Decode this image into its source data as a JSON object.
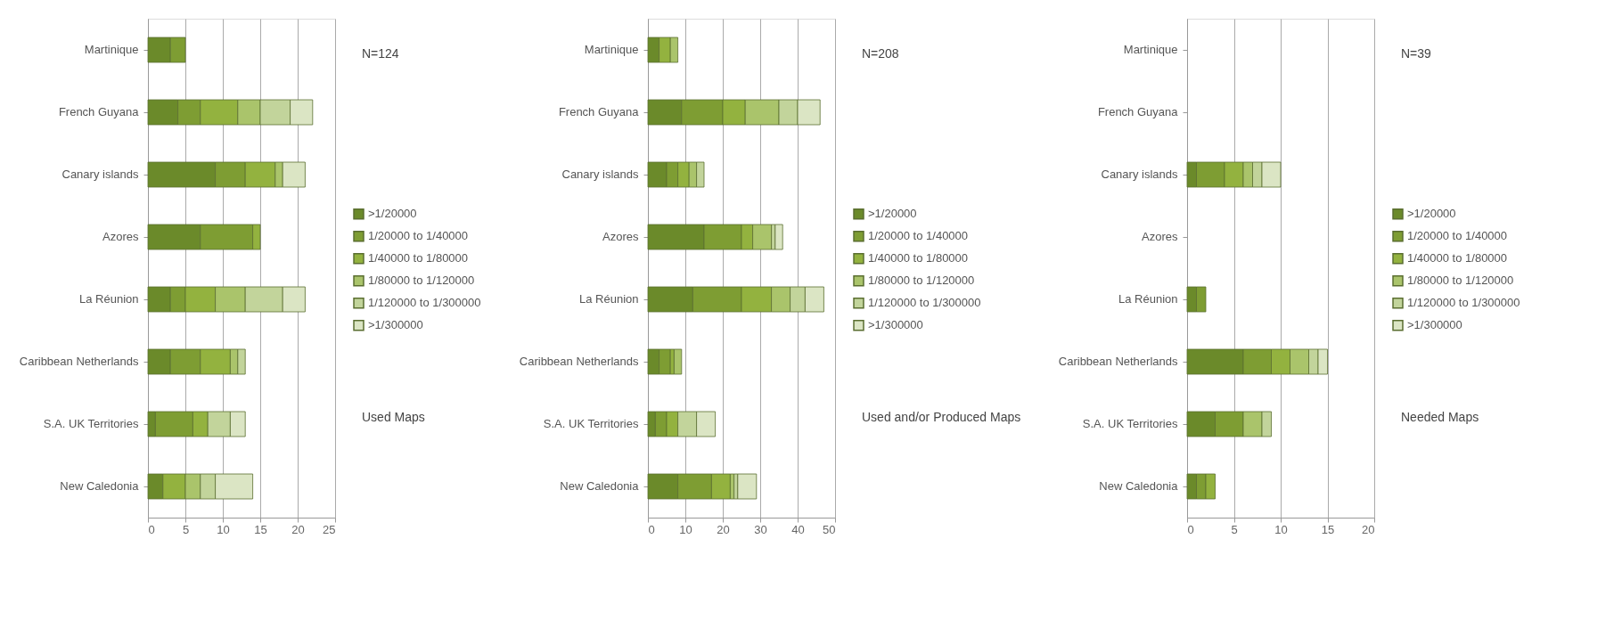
{
  "chart_data": [
    {
      "type": "bar",
      "orientation": "horizontal",
      "stacked": true,
      "categories": [
        "Martinique",
        "French Guyana",
        "Canary islands",
        "Azores",
        "La Réunion",
        "Caribbean Netherlands",
        "S.A. UK Territories",
        "New Caledonia"
      ],
      "series": [
        {
          "name": ">1/20000",
          "color": "#6b8a2a",
          "values": [
            3,
            4,
            9,
            7,
            3,
            3,
            1,
            2
          ]
        },
        {
          "name": "1/20000 to 1/40000",
          "color": "#7e9d33",
          "values": [
            2,
            3,
            4,
            7,
            2,
            4,
            5,
            0
          ]
        },
        {
          "name": "1/40000 to 1/80000",
          "color": "#93b23f",
          "values": [
            0,
            5,
            4,
            1,
            4,
            4,
            2,
            3
          ]
        },
        {
          "name": "1/80000 to 1/120000",
          "color": "#aac46b",
          "values": [
            0,
            3,
            1,
            0,
            4,
            1,
            0,
            2
          ]
        },
        {
          "name": "1/120000 to 1/300000",
          "color": "#c2d49b",
          "values": [
            0,
            4,
            0,
            0,
            5,
            1,
            3,
            2
          ]
        },
        {
          "name": ">1/300000",
          "color": "#dbe5c4",
          "values": [
            0,
            3,
            3,
            0,
            3,
            0,
            2,
            5
          ]
        }
      ],
      "xlim": [
        0,
        25
      ],
      "xticks": [
        0,
        5,
        10,
        15,
        20,
        25
      ],
      "grid": "x",
      "legend": "right",
      "annotations": [
        "N=124",
        "Used Maps"
      ]
    },
    {
      "type": "bar",
      "orientation": "horizontal",
      "stacked": true,
      "categories": [
        "Martinique",
        "French Guyana",
        "Canary islands",
        "Azores",
        "La Réunion",
        "Caribbean Netherlands",
        "S.A. UK Territories",
        "New Caledonia"
      ],
      "series": [
        {
          "name": ">1/20000",
          "color": "#6b8a2a",
          "values": [
            3,
            9,
            5,
            15,
            12,
            3,
            2,
            8
          ]
        },
        {
          "name": "1/20000 to 1/40000",
          "color": "#7e9d33",
          "values": [
            0,
            11,
            3,
            10,
            13,
            3,
            3,
            9
          ]
        },
        {
          "name": "1/40000 to 1/80000",
          "color": "#93b23f",
          "values": [
            3,
            6,
            3,
            3,
            8,
            1,
            3,
            5
          ]
        },
        {
          "name": "1/80000 to 1/120000",
          "color": "#aac46b",
          "values": [
            2,
            9,
            2,
            5,
            5,
            2,
            0,
            1
          ]
        },
        {
          "name": "1/120000 to 1/300000",
          "color": "#c2d49b",
          "values": [
            0,
            5,
            2,
            1,
            4,
            0,
            5,
            1
          ]
        },
        {
          "name": ">1/300000",
          "color": "#dbe5c4",
          "values": [
            0,
            6,
            0,
            2,
            5,
            0,
            5,
            5
          ]
        }
      ],
      "xlim": [
        0,
        50
      ],
      "xticks": [
        0,
        10,
        20,
        30,
        40,
        50
      ],
      "grid": "x",
      "legend": "right",
      "annotations": [
        "N=208",
        "Used and/or Produced Maps"
      ]
    },
    {
      "type": "bar",
      "orientation": "horizontal",
      "stacked": true,
      "categories": [
        "Martinique",
        "French Guyana",
        "Canary islands",
        "Azores",
        "La Réunion",
        "Caribbean Netherlands",
        "S.A. UK Territories",
        "New Caledonia"
      ],
      "series": [
        {
          "name": ">1/20000",
          "color": "#6b8a2a",
          "values": [
            0,
            0,
            1,
            0,
            1,
            6,
            3,
            1
          ]
        },
        {
          "name": "1/20000 to 1/40000",
          "color": "#7e9d33",
          "values": [
            0,
            0,
            3,
            0,
            1,
            3,
            3,
            1
          ]
        },
        {
          "name": "1/40000 to 1/80000",
          "color": "#93b23f",
          "values": [
            0,
            0,
            2,
            0,
            0,
            2,
            0,
            1
          ]
        },
        {
          "name": "1/80000 to 1/120000",
          "color": "#aac46b",
          "values": [
            0,
            0,
            1,
            0,
            0,
            2,
            2,
            0
          ]
        },
        {
          "name": "1/120000 to 1/300000",
          "color": "#c2d49b",
          "values": [
            0,
            0,
            1,
            0,
            0,
            1,
            1,
            0
          ]
        },
        {
          "name": ">1/300000",
          "color": "#dbe5c4",
          "values": [
            0,
            0,
            2,
            0,
            0,
            1,
            0,
            0
          ]
        }
      ],
      "xlim": [
        0,
        20
      ],
      "xticks": [
        0,
        5,
        10,
        15,
        20
      ],
      "grid": "x",
      "legend": "right",
      "annotations": [
        "N=39",
        "Needed Maps"
      ]
    }
  ]
}
